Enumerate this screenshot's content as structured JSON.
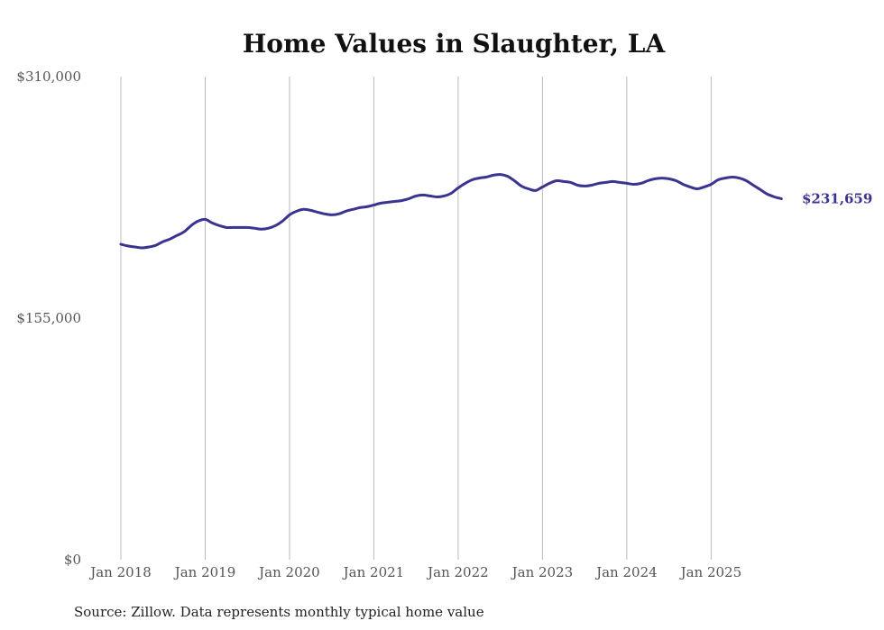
{
  "chart_data": {
    "type": "line",
    "title": "Home Values in Slaughter, LA",
    "xlabel": "",
    "ylabel": "",
    "ylim": [
      0,
      310000
    ],
    "y_ticks": [
      {
        "value": 0,
        "label": "$0"
      },
      {
        "value": 155000,
        "label": "$155,000"
      },
      {
        "value": 310000,
        "label": "$310,000"
      }
    ],
    "x_ticks": [
      {
        "index": 0,
        "label": "Jan 2018"
      },
      {
        "index": 12,
        "label": "Jan 2019"
      },
      {
        "index": 24,
        "label": "Jan 2020"
      },
      {
        "index": 36,
        "label": "Jan 2021"
      },
      {
        "index": 48,
        "label": "Jan 2022"
      },
      {
        "index": 60,
        "label": "Jan 2023"
      },
      {
        "index": 72,
        "label": "Jan 2024"
      },
      {
        "index": 84,
        "label": "Jan 2025"
      }
    ],
    "grid": "vertical lines at x ticks",
    "legend": "none",
    "x_start": "Jan 2018",
    "x_end": "Nov 2025",
    "x_frequency": "monthly",
    "series": [
      {
        "name": "Typical home value",
        "color": "#3a3490",
        "values": [
          202400,
          201300,
          200700,
          200100,
          200700,
          201800,
          204100,
          205800,
          208100,
          210400,
          214400,
          217300,
          218400,
          216100,
          214400,
          213200,
          213200,
          213200,
          213200,
          212700,
          212100,
          212700,
          214400,
          217300,
          221300,
          223600,
          224800,
          224200,
          223000,
          221900,
          221300,
          221900,
          223600,
          224800,
          225900,
          226500,
          227600,
          228800,
          229400,
          229900,
          230500,
          231700,
          233400,
          234000,
          233400,
          232800,
          233400,
          235100,
          238600,
          241500,
          243800,
          244900,
          245500,
          246700,
          247200,
          246100,
          243200,
          239800,
          238000,
          236900,
          239200,
          241500,
          243200,
          242700,
          242100,
          240300,
          239800,
          240300,
          241500,
          242100,
          242700,
          242100,
          241500,
          240900,
          241500,
          243200,
          244400,
          244900,
          244400,
          243200,
          240900,
          239200,
          238000,
          239200,
          240900,
          243800,
          244900,
          245500,
          244900,
          243200,
          240300,
          237500,
          234600,
          232800,
          231659
        ]
      }
    ],
    "end_label": "$231,659",
    "source": "Source: Zillow. Data represents monthly typical home value"
  }
}
